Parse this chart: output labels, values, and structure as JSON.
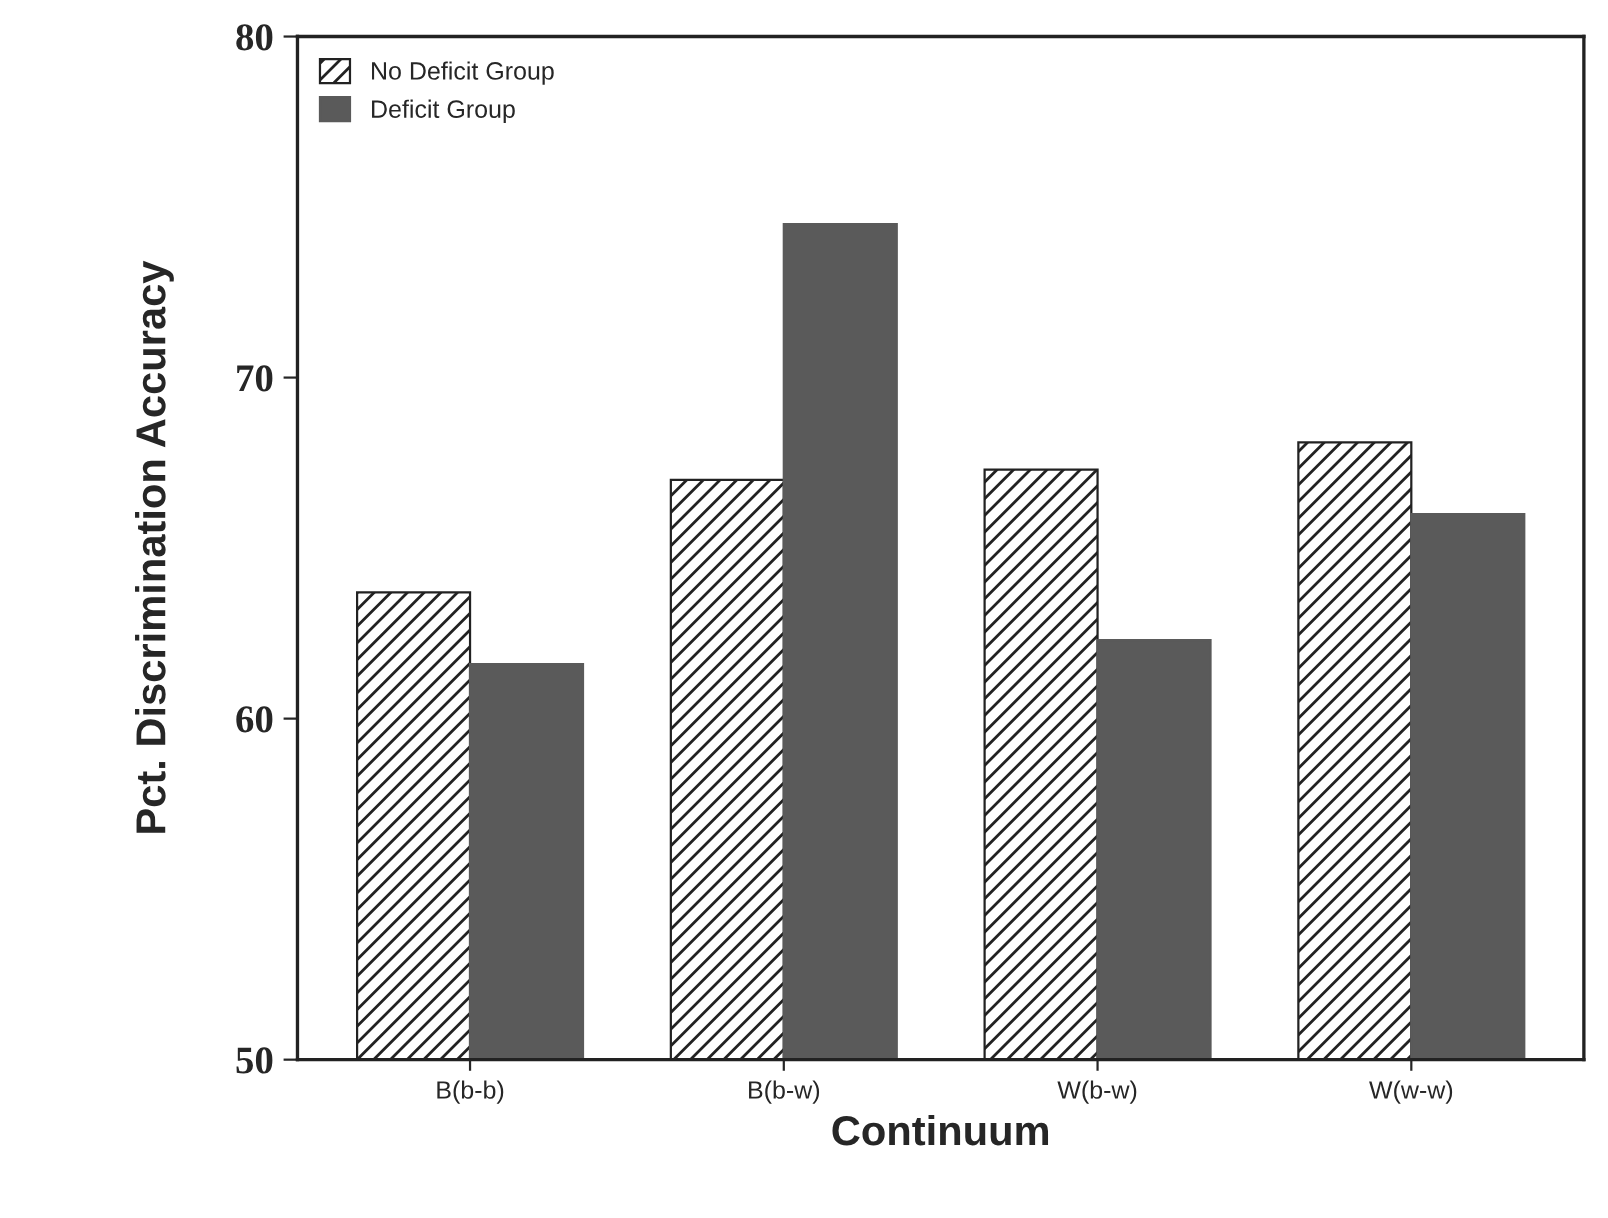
{
  "chart_data": {
    "type": "bar",
    "categories": [
      "B(b-b)",
      "B(b-w)",
      "W(b-w)",
      "W(w-w)"
    ],
    "xlabel": "Continuum",
    "ylabel": "Pct. Discrimination Accuracy",
    "ylim": [
      50,
      80
    ],
    "yticks": [
      50,
      60,
      70,
      80
    ],
    "legend": "top left",
    "grid": false,
    "series": [
      {
        "name": "No Deficit Group",
        "color": "#222222",
        "values": [
          63.7,
          67.0,
          67.3,
          68.1
        ]
      },
      {
        "name": "Deficit Group",
        "color": "#5a5a5a",
        "values": [
          61.6,
          74.5,
          62.3,
          66.0
        ]
      }
    ]
  }
}
